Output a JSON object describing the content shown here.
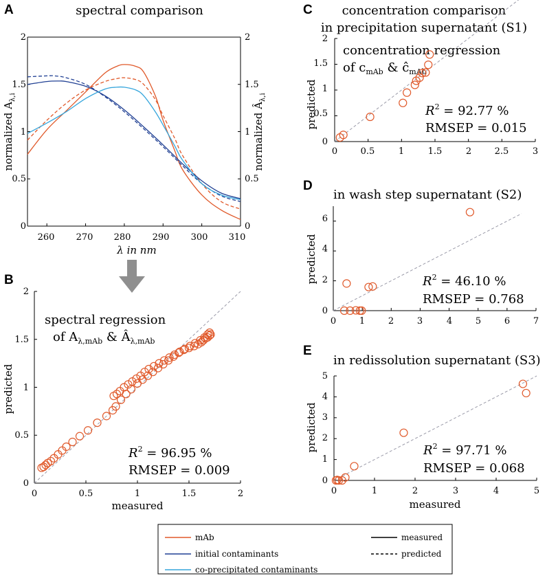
{
  "colors": {
    "mAb": "#e0592a",
    "initial": "#1f3f93",
    "coprec": "#34a5dc",
    "black": "#000000",
    "diag": "#9a9aa8",
    "arrow": "#8f8f8f"
  },
  "chart_data": [
    {
      "id": "A",
      "type": "line",
      "panel_letter": "A",
      "title": "spectral comparison",
      "xlabel": "λ in nm",
      "ylabel_left": "normalized A",
      "ylabel_left_sub": "λ,i",
      "ylabel_right": "normalized Â",
      "ylabel_right_sub": "λ,i",
      "xlim": [
        255,
        310
      ],
      "ylim": [
        0,
        2
      ],
      "xticks": [
        260,
        270,
        280,
        290,
        300,
        310
      ],
      "yticks": [
        0,
        0.5,
        1,
        1.5,
        2
      ],
      "series": [
        {
          "name": "mAb measured",
          "component": "mAb",
          "style": "solid",
          "x": [
            255,
            260,
            265,
            270,
            275,
            278,
            280,
            283,
            285,
            288,
            290,
            293,
            295,
            300,
            305,
            310
          ],
          "y": [
            0.76,
            1.02,
            1.22,
            1.42,
            1.62,
            1.69,
            1.71,
            1.69,
            1.63,
            1.38,
            1.12,
            0.8,
            0.6,
            0.33,
            0.17,
            0.07
          ]
        },
        {
          "name": "mAb predicted",
          "component": "mAb",
          "style": "dashed",
          "x": [
            255,
            260,
            265,
            270,
            275,
            278,
            280,
            283,
            285,
            288,
            290,
            293,
            295,
            300,
            305,
            310
          ],
          "y": [
            0.91,
            1.12,
            1.3,
            1.44,
            1.53,
            1.56,
            1.57,
            1.55,
            1.5,
            1.34,
            1.17,
            0.93,
            0.75,
            0.45,
            0.26,
            0.18
          ]
        },
        {
          "name": "initial contaminants measured",
          "component": "initial",
          "style": "solid",
          "x": [
            255,
            260,
            263,
            265,
            270,
            275,
            280,
            285,
            290,
            295,
            300,
            305,
            310
          ],
          "y": [
            1.5,
            1.53,
            1.535,
            1.53,
            1.48,
            1.38,
            1.23,
            1.05,
            0.86,
            0.66,
            0.48,
            0.35,
            0.29
          ]
        },
        {
          "name": "initial contaminants predicted",
          "component": "initial",
          "style": "dashed",
          "x": [
            255,
            260,
            262,
            265,
            270,
            275,
            280,
            285,
            290,
            295,
            300,
            305,
            310
          ],
          "y": [
            1.58,
            1.59,
            1.59,
            1.57,
            1.5,
            1.37,
            1.21,
            1.03,
            0.84,
            0.64,
            0.45,
            0.32,
            0.26
          ]
        },
        {
          "name": "co-precipitated contaminants measured",
          "component": "coprec",
          "style": "solid",
          "x": [
            255,
            260,
            265,
            270,
            275,
            278,
            280,
            283,
            285,
            288,
            290,
            293,
            295,
            300,
            305,
            310
          ],
          "y": [
            0.98,
            1.09,
            1.21,
            1.35,
            1.45,
            1.47,
            1.47,
            1.44,
            1.38,
            1.21,
            1.07,
            0.85,
            0.7,
            0.45,
            0.33,
            0.28
          ]
        }
      ]
    },
    {
      "id": "B",
      "type": "scatter",
      "panel_letter": "B",
      "annotation_line1": "spectral regression",
      "annotation_line2": "of A",
      "annotation_sub1": "λ,mAb",
      "annotation_amp": " & Â",
      "annotation_sub2": "λ,mAb",
      "r2_label": "R",
      "r2_value": " = 96.95 %",
      "rmsep": "RMSEP = 0.009",
      "xlabel": "measured",
      "ylabel": "predicted",
      "xlim": [
        0,
        2
      ],
      "ylim": [
        0,
        2
      ],
      "xticks": [
        0,
        0.5,
        1,
        1.5,
        2
      ],
      "yticks": [
        0,
        0.5,
        1,
        1.5,
        2
      ],
      "diagonal": [
        0,
        2
      ],
      "x": [
        0.07,
        0.09,
        0.11,
        0.13,
        0.16,
        0.19,
        0.23,
        0.27,
        0.31,
        0.37,
        0.44,
        0.52,
        0.61,
        0.7,
        0.76,
        0.79,
        0.84,
        0.89,
        0.94,
        1.0,
        1.05,
        1.1,
        1.15,
        1.2,
        1.25,
        1.3,
        1.35,
        1.4,
        1.45,
        1.5,
        1.55,
        1.59,
        1.62,
        1.64,
        1.66,
        1.68,
        1.7,
        1.71,
        0.77,
        0.8,
        0.83,
        0.87,
        0.91,
        0.95,
        0.99,
        1.03,
        1.07,
        1.11,
        1.16,
        1.21,
        1.26,
        1.31,
        1.36,
        1.41,
        1.46,
        1.51,
        1.56,
        1.61,
        1.65,
        1.68,
        1.7
      ],
      "y": [
        0.16,
        0.17,
        0.19,
        0.21,
        0.23,
        0.26,
        0.3,
        0.34,
        0.38,
        0.43,
        0.49,
        0.55,
        0.63,
        0.7,
        0.76,
        0.8,
        0.87,
        0.93,
        0.98,
        1.04,
        1.08,
        1.12,
        1.16,
        1.2,
        1.24,
        1.28,
        1.32,
        1.36,
        1.39,
        1.41,
        1.43,
        1.45,
        1.47,
        1.49,
        1.51,
        1.52,
        1.54,
        1.55,
        0.91,
        0.93,
        0.96,
        1.0,
        1.03,
        1.06,
        1.09,
        1.12,
        1.16,
        1.19,
        1.22,
        1.25,
        1.28,
        1.31,
        1.34,
        1.37,
        1.4,
        1.43,
        1.46,
        1.49,
        1.52,
        1.55,
        1.57
      ]
    },
    {
      "id": "C",
      "type": "scatter",
      "panel_letter": "C",
      "title_line1": "concentration comparison",
      "title_line2": "in precipitation supernatant (S1)",
      "annotation_line1": "concentration regression",
      "annotation_line2": "of c",
      "annotation_sub1": "mAb",
      "annotation_amp": " & ĉ",
      "annotation_sub2": "mAb",
      "r2_label": "R",
      "r2_value": " = 92.77 %",
      "rmsep": "RMSEP = 0.015",
      "ylabel": "predicted",
      "xlim": [
        0,
        3
      ],
      "ylim": [
        0,
        2
      ],
      "xticks": [
        0,
        0.5,
        1,
        1.5,
        2,
        2.5,
        3
      ],
      "yticks": [
        0,
        0.5,
        1,
        1.5,
        2
      ],
      "diagonal": [
        0,
        3
      ],
      "x": [
        0.08,
        0.13,
        0.53,
        1.02,
        1.08,
        1.2,
        1.22,
        1.27,
        1.31,
        1.36,
        1.4,
        1.42
      ],
      "y": [
        0.08,
        0.13,
        0.48,
        0.75,
        0.95,
        1.1,
        1.18,
        1.24,
        1.33,
        1.34,
        1.49,
        1.69
      ]
    },
    {
      "id": "D",
      "type": "scatter",
      "panel_letter": "D",
      "title": "in wash step supernatant (S2)",
      "r2_label": "R",
      "r2_value": " = 46.10 %",
      "rmsep": "RMSEP = 0.768",
      "ylabel": "predicted",
      "xlim": [
        0,
        7
      ],
      "ylim": [
        0,
        7
      ],
      "xticks": [
        0,
        1,
        2,
        3,
        4,
        5,
        6,
        7
      ],
      "yticks": [
        0,
        2,
        4,
        6
      ],
      "diagonal": [
        0,
        6.5
      ],
      "x": [
        0.38,
        0.46,
        0.58,
        0.78,
        0.92,
        0.98,
        1.22,
        1.36,
        4.72
      ],
      "y": [
        0.0,
        1.82,
        0.0,
        0.02,
        0.0,
        0.0,
        1.58,
        1.62,
        6.6
      ]
    },
    {
      "id": "E",
      "type": "scatter",
      "panel_letter": "E",
      "title": "in redissolution supernatant (S3)",
      "r2_label": "R",
      "r2_value": " = 97.71 %",
      "rmsep": "RMSEP = 0.068",
      "xlabel": "measured",
      "ylabel": "predicted",
      "xlim": [
        0,
        5
      ],
      "ylim": [
        0,
        5
      ],
      "xticks": [
        0,
        1,
        2,
        3,
        4,
        5
      ],
      "yticks": [
        0,
        1,
        2,
        3,
        4,
        5
      ],
      "diagonal": [
        0,
        5
      ],
      "x": [
        0.05,
        0.08,
        0.12,
        0.2,
        0.28,
        0.5,
        1.72,
        4.66,
        4.74
      ],
      "y": [
        0.0,
        0.02,
        0.0,
        0.0,
        0.14,
        0.68,
        2.28,
        4.62,
        4.18
      ]
    }
  ],
  "legend": {
    "items": [
      {
        "label": "mAb",
        "color_key": "mAb",
        "style": "solid"
      },
      {
        "label": "initial contaminants",
        "color_key": "initial",
        "style": "solid"
      },
      {
        "label": "co-precipitated contaminants",
        "color_key": "coprec",
        "style": "solid"
      }
    ],
    "line_styles": [
      {
        "label": "measured",
        "style": "solid"
      },
      {
        "label": "predicted",
        "style": "dashed"
      }
    ]
  }
}
